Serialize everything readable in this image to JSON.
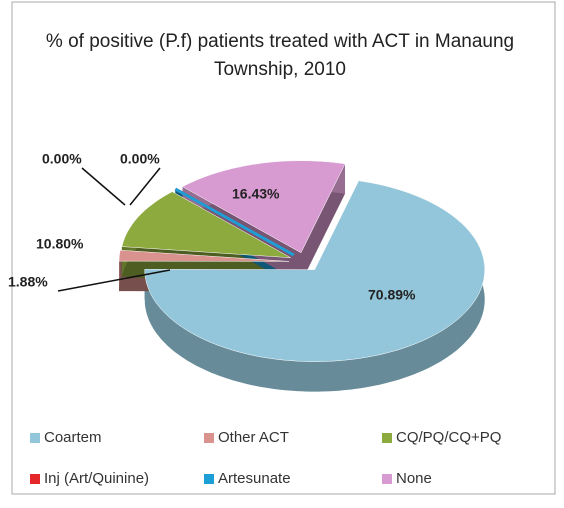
{
  "chart_data": {
    "type": "pie",
    "title": "% of positive (P.f) patients treated with ACT in Manaung Township, 2010",
    "categories": [
      "Coartem",
      "Other ACT",
      "CQ/PQ/CQ+PQ",
      "Inj (Art/Quinine)",
      "Artesunate",
      "None"
    ],
    "values": [
      70.89,
      1.88,
      10.8,
      0.0,
      0.0,
      16.43
    ],
    "value_labels": [
      "70.89%",
      "1.88%",
      "10.80%",
      "0.00%",
      "0.00%",
      "16.43%"
    ],
    "colors": [
      "#93c6da",
      "#d9928d",
      "#8daa3e",
      "#e5262b",
      "#1c9fd6",
      "#d89bd1"
    ],
    "legend": "bottom"
  }
}
